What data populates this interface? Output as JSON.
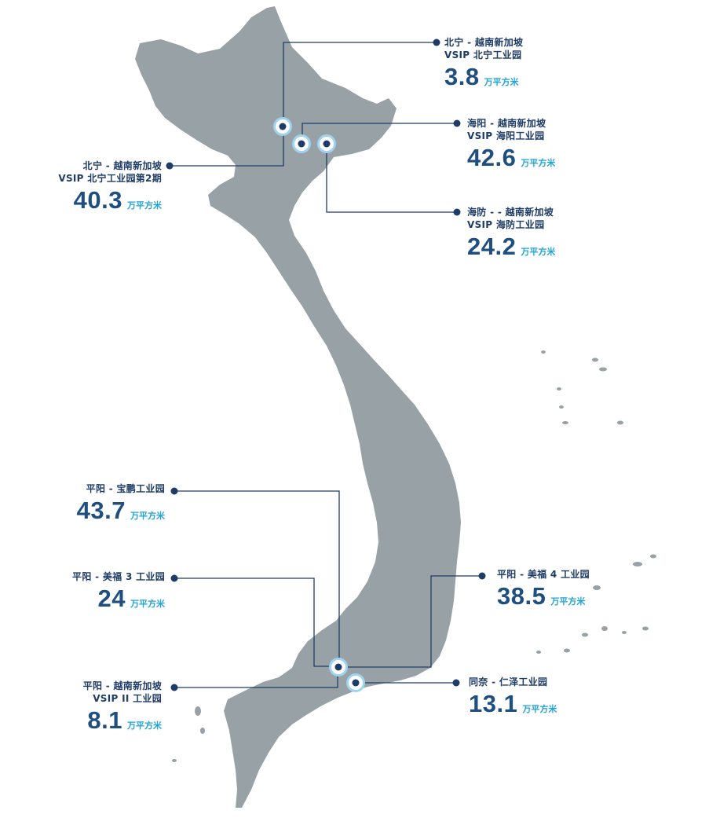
{
  "unit": "万平方米",
  "colors": {
    "land": "#98a1a6",
    "line": "#1f3c66",
    "value": "#1f4f7f",
    "unit": "#1fa3d8",
    "marker_ring": "#9fd3ee"
  },
  "parks": [
    {
      "name_lines": [
        "北宁 - 越南新加坡",
        "VSIP 北宁工业园"
      ],
      "value": "3.8"
    },
    {
      "name_lines": [
        "海阳 - 越南新加坡",
        "VSIP 海阳工业园"
      ],
      "value": "42.6"
    },
    {
      "name_lines": [
        "北宁 - 越南新加坡",
        "VSIP 北宁工业园第2期"
      ],
      "value": "40.3"
    },
    {
      "name_lines": [
        "海防 - - 越南新加坡",
        "VSIP 海防工业园"
      ],
      "value": "24.2"
    },
    {
      "name_lines": [
        "平阳 - 宝鹏工业园"
      ],
      "value": "43.7"
    },
    {
      "name_lines": [
        "平阳 - 美福 3 工业园"
      ],
      "value": "24"
    },
    {
      "name_lines": [
        "平阳 - 美福 4 工业园"
      ],
      "value": "38.5"
    },
    {
      "name_lines": [
        "平阳 - 越南新加坡",
        "VSIP II 工业园"
      ],
      "value": "8.1"
    },
    {
      "name_lines": [
        "同奈 - 仁泽工业园"
      ],
      "value": "13.1"
    }
  ]
}
